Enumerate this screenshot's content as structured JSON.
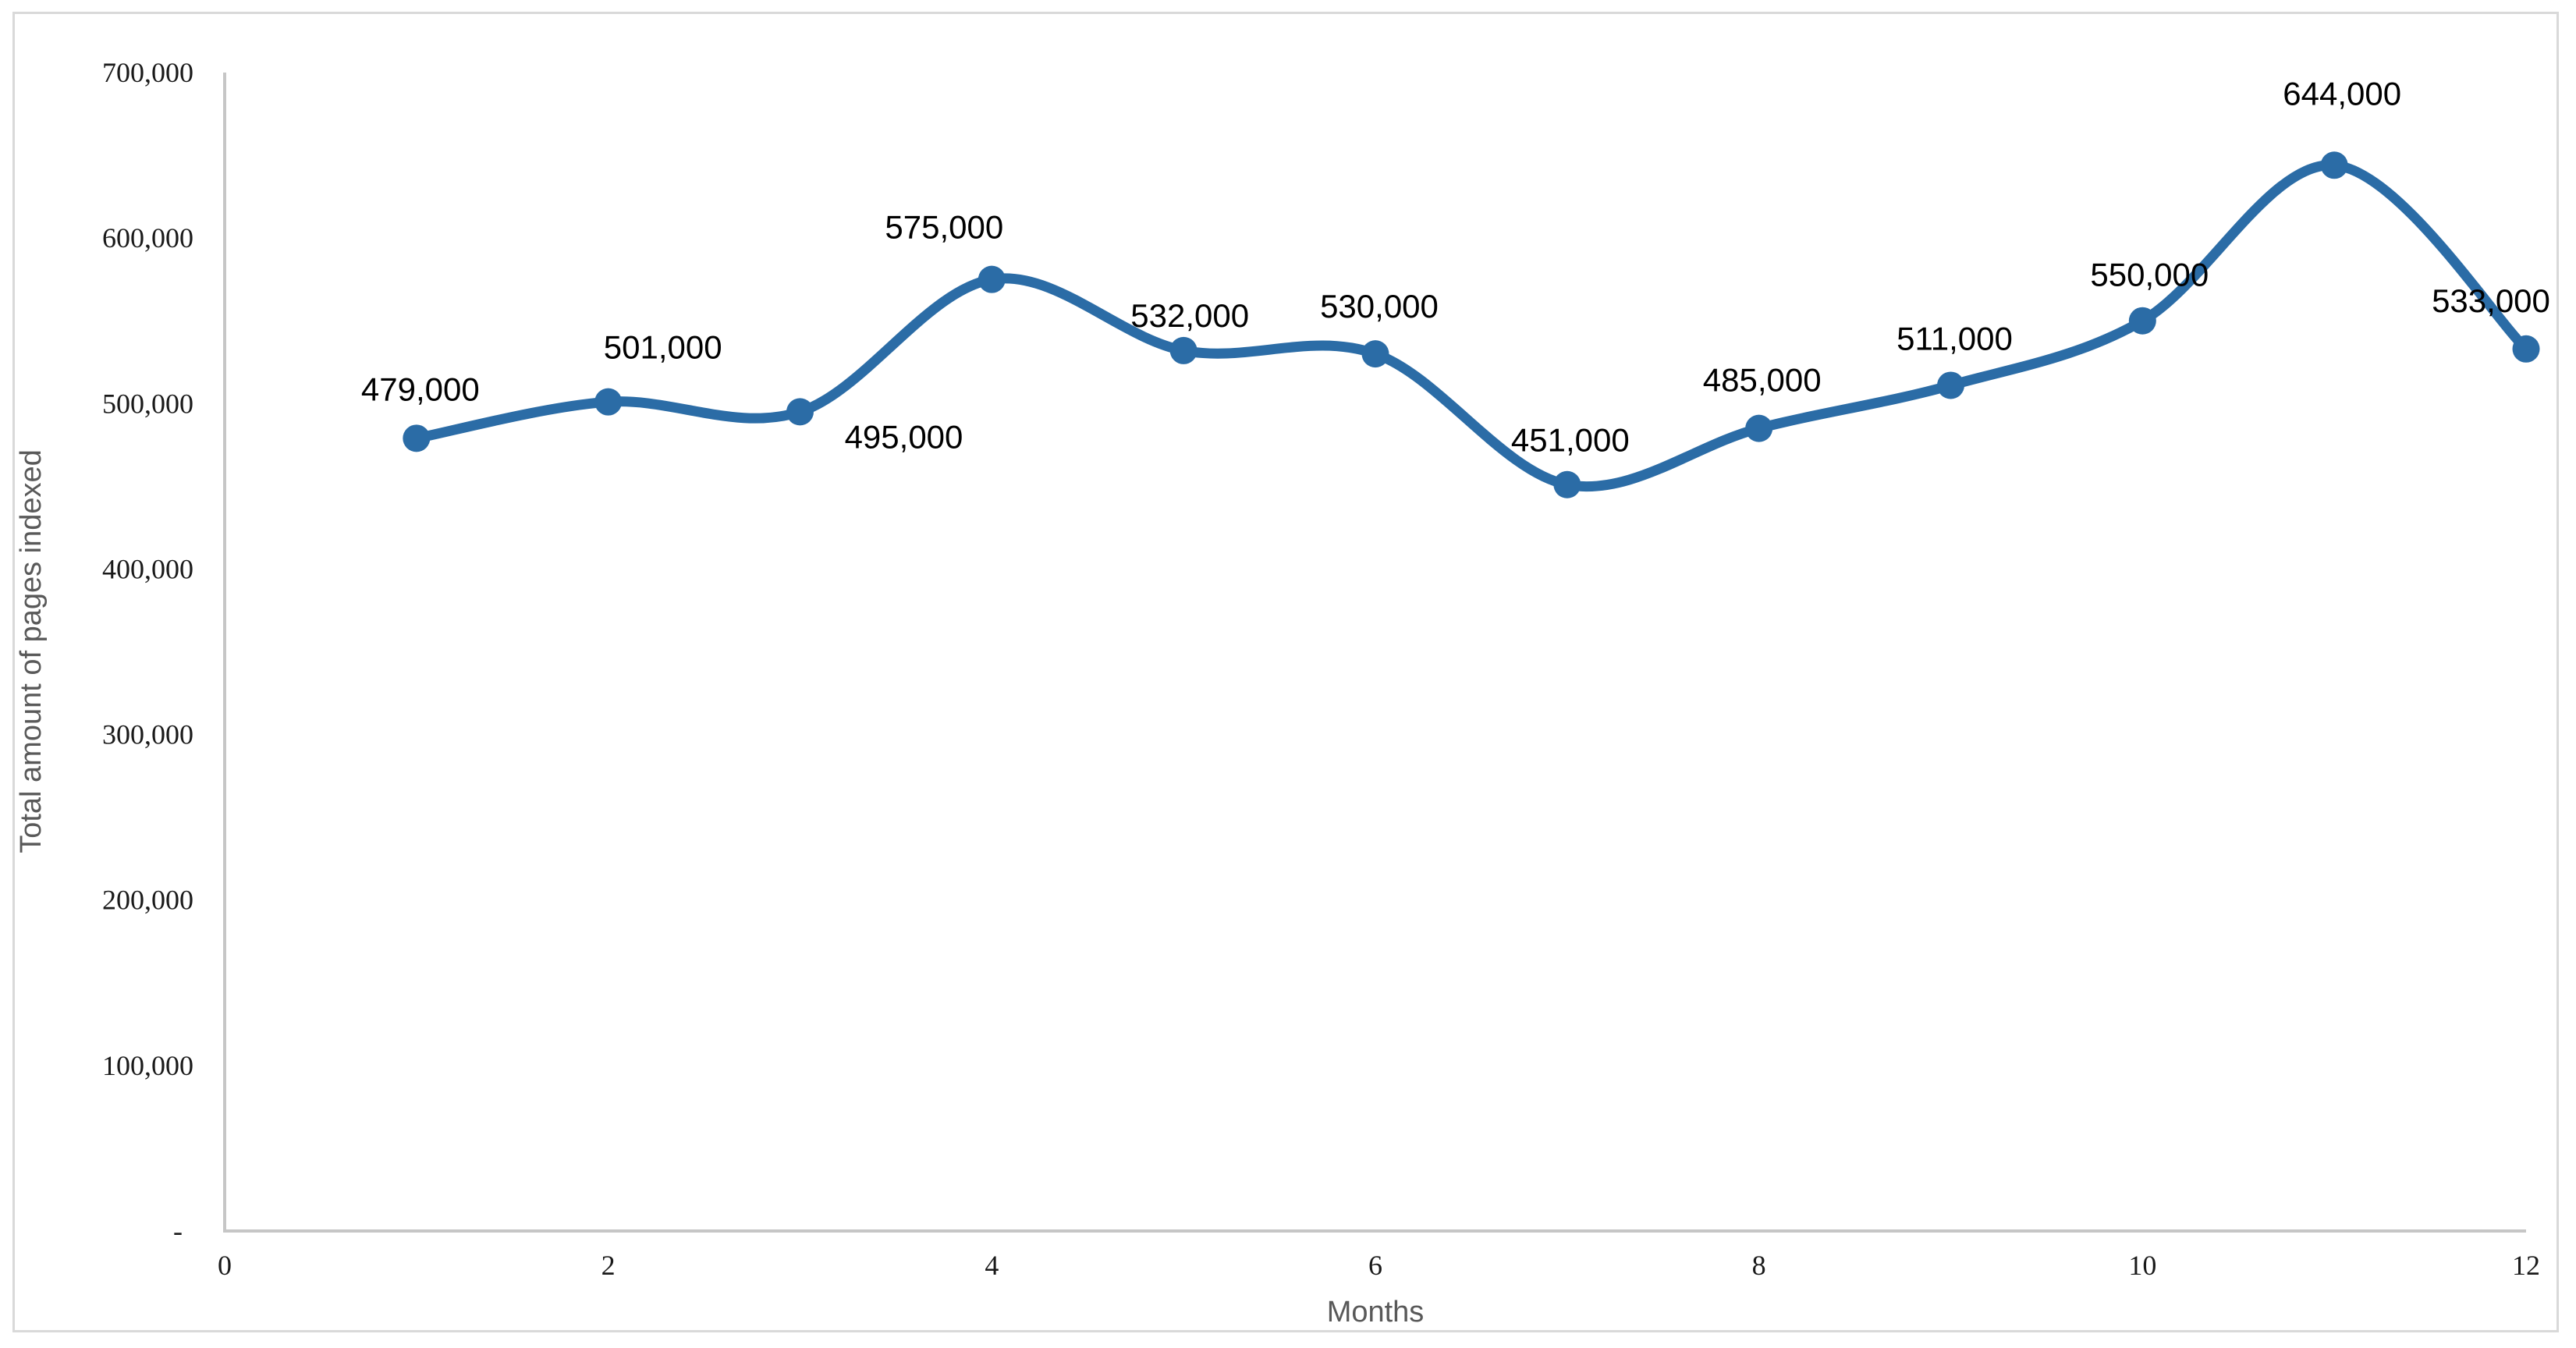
{
  "chart_data": {
    "type": "line",
    "title": "",
    "xlabel": "Months",
    "ylabel": "Total amount of pages indexed",
    "x": [
      1,
      2,
      3,
      4,
      5,
      6,
      7,
      8,
      9,
      10,
      11,
      12
    ],
    "values": [
      479000,
      501000,
      495000,
      575000,
      532000,
      530000,
      451000,
      485000,
      511000,
      550000,
      644000,
      533000
    ],
    "point_labels": [
      "479,000",
      "501,000",
      "495,000",
      "575,000",
      "532,000",
      "530,000",
      "451,000",
      "485,000",
      "511,000",
      "550,000",
      "644,000",
      "533,000"
    ],
    "xlim": [
      0,
      12
    ],
    "ylim": [
      0,
      700000
    ],
    "x_tick_values": [
      0,
      2,
      4,
      6,
      8,
      10,
      12
    ],
    "x_tick_labels": [
      "0",
      "2",
      "4",
      "6",
      "8",
      "10",
      "12"
    ],
    "y_tick_values": [
      0,
      100000,
      200000,
      300000,
      400000,
      500000,
      600000,
      700000
    ],
    "y_tick_labels": [
      "-",
      "100,000",
      "200,000",
      "300,000",
      "400,000",
      "500,000",
      "600,000",
      "700,000"
    ],
    "grid": false,
    "legend": "none",
    "smooth": true,
    "marker": "circle",
    "line_color": "#2b6ca6",
    "marker_color": "#2b6ca6",
    "axis_line_color": "#c6c6c6",
    "frame_border_color": "#d9d9d9",
    "axis_title_color": "#595959",
    "data_label_color": "#000000"
  }
}
